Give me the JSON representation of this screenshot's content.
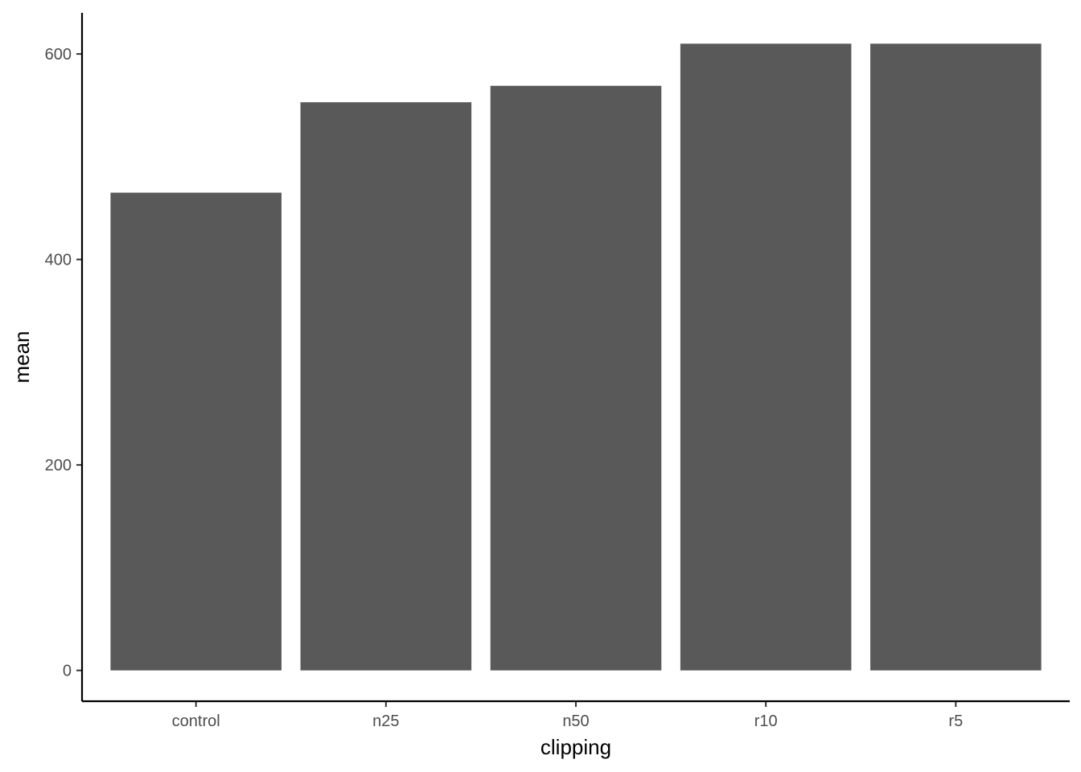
{
  "chart_data": {
    "type": "bar",
    "categories": [
      "control",
      "n25",
      "n50",
      "r10",
      "r5"
    ],
    "values": [
      465,
      553,
      569,
      610,
      610
    ],
    "xlabel": "clipping",
    "ylabel": "mean",
    "yticks": [
      0,
      200,
      400,
      600
    ],
    "ylim": [
      -30,
      640
    ],
    "bar_color": "#595959",
    "grid": false,
    "legend": "none"
  }
}
